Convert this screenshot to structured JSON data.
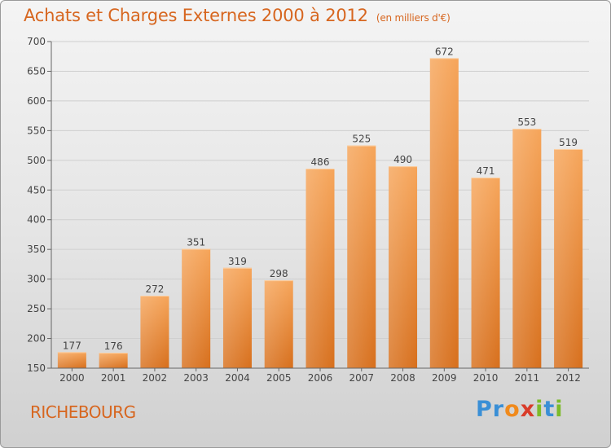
{
  "title": "Achats et Charges Externes 2000 à 2012",
  "subtitle": "(en milliers d'€)",
  "city": "RICHEBOURG",
  "logo": {
    "text": "Proxiti",
    "letters": [
      {
        "ch": "P",
        "color": "#3a8fd6"
      },
      {
        "ch": "r",
        "color": "#3a8fd6"
      },
      {
        "ch": "o",
        "color": "#f08a1c"
      },
      {
        "ch": "x",
        "color": "#d93c2a"
      },
      {
        "ch": "i",
        "color": "#7dbb2a"
      },
      {
        "ch": "t",
        "color": "#3a8fd6"
      },
      {
        "ch": "i",
        "color": "#7dbb2a"
      }
    ]
  },
  "colors": {
    "accent": "#d7661f",
    "bar_top": "#f6a55a",
    "bar_bottom": "#d76f1c"
  },
  "chart_data": {
    "type": "bar",
    "title": "Achats et Charges Externes 2000 à 2012",
    "subtitle": "(en milliers d'€)",
    "categories": [
      "2000",
      "2001",
      "2002",
      "2003",
      "2004",
      "2005",
      "2006",
      "2007",
      "2008",
      "2009",
      "2010",
      "2011",
      "2012"
    ],
    "values": [
      177,
      176,
      272,
      351,
      319,
      298,
      486,
      525,
      490,
      672,
      471,
      553,
      519
    ],
    "ylim": [
      150,
      700
    ],
    "yticks": [
      150,
      200,
      250,
      300,
      350,
      400,
      450,
      500,
      550,
      600,
      650,
      700
    ],
    "xlabel": "",
    "ylabel": "",
    "grid": true
  }
}
